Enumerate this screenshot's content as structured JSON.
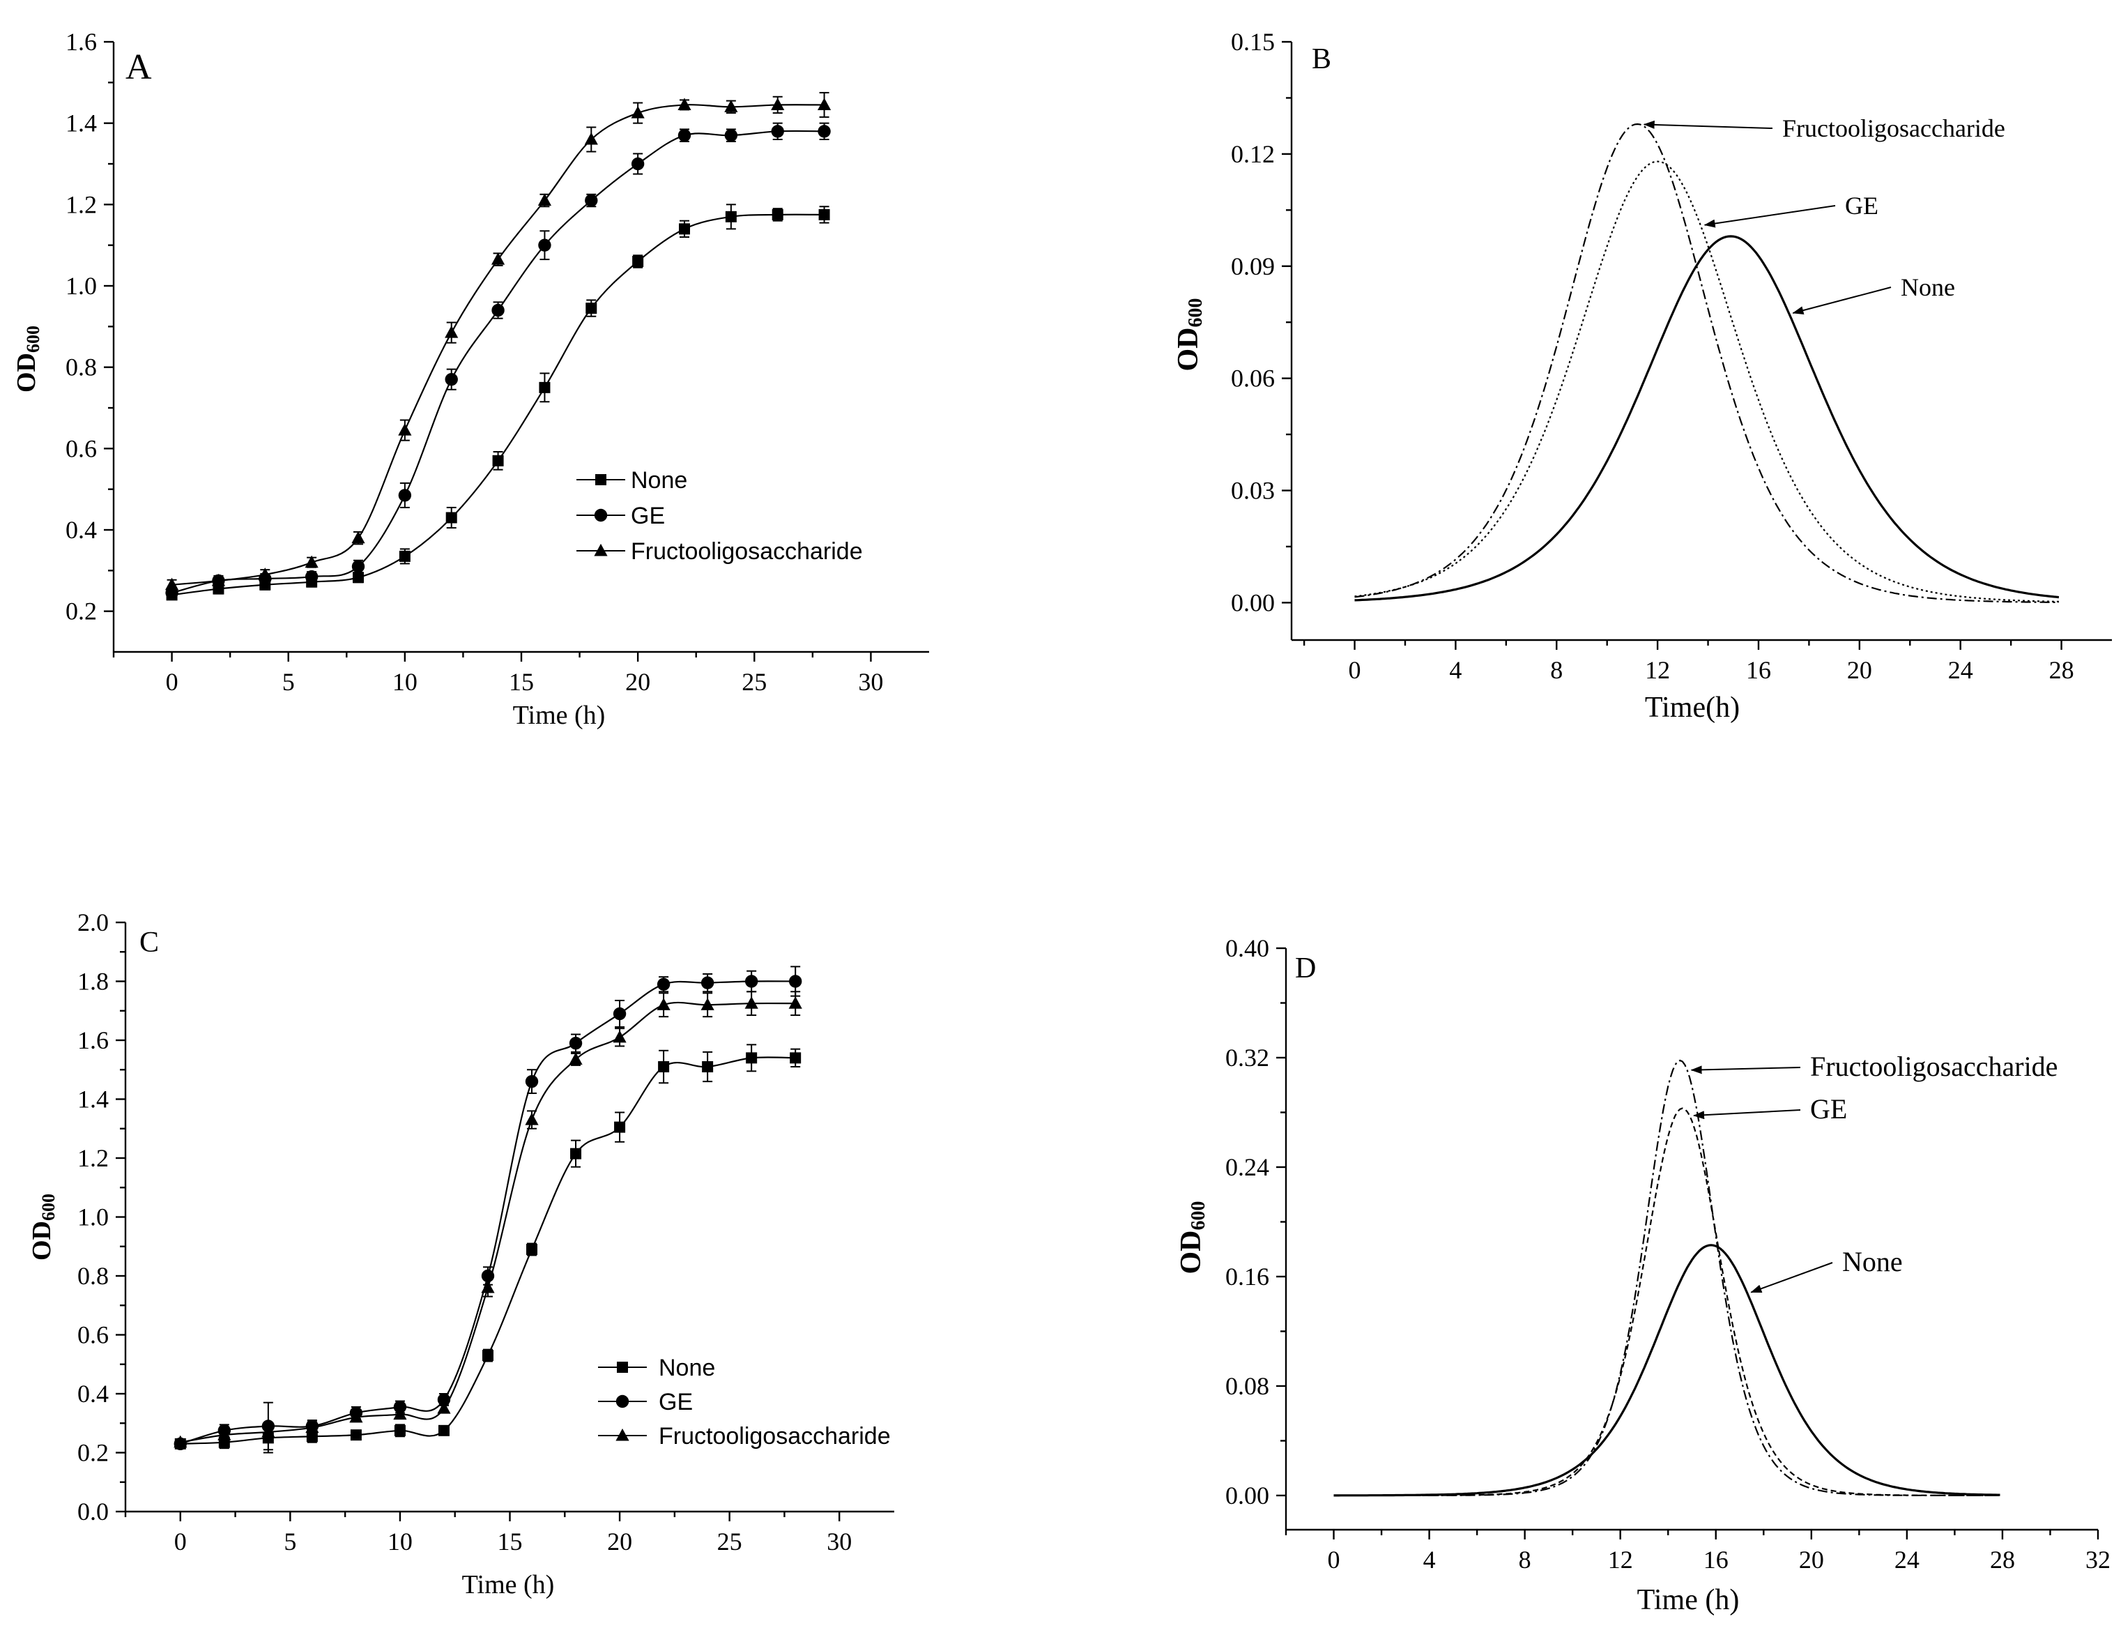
{
  "chart_data": [
    {
      "type": "line",
      "panel": "A",
      "panel_label": "A",
      "xlabel": "Time (h)",
      "ylabel_main": "OD",
      "ylabel_sub": "600",
      "xlim": [
        -2.5,
        32.5
      ],
      "ylim": [
        0.1,
        1.6
      ],
      "xticks": [
        0,
        5,
        10,
        15,
        20,
        25,
        30
      ],
      "xtick_labels": [
        "0",
        "5",
        "10",
        "15",
        "20",
        "25",
        "30"
      ],
      "yticks": [
        0.2,
        0.4,
        0.6,
        0.8,
        1.0,
        1.2,
        1.4,
        1.6
      ],
      "ytick_labels": [
        "0.2",
        "0.4",
        "0.6",
        "0.8",
        "1.0",
        "1.2",
        "1.4",
        "1.6"
      ],
      "legend_position": "center-right",
      "x": [
        0,
        2,
        4,
        6,
        8,
        10,
        12,
        14,
        16,
        18,
        20,
        22,
        24,
        26,
        28
      ],
      "series": [
        {
          "name": "None",
          "marker": "square",
          "values": [
            0.24,
            0.255,
            0.265,
            0.272,
            0.283,
            0.335,
            0.43,
            0.57,
            0.75,
            0.945,
            1.06,
            1.14,
            1.17,
            1.175,
            1.175
          ],
          "errors": [
            0.01,
            0.012,
            0.012,
            0.012,
            0.012,
            0.018,
            0.025,
            0.022,
            0.035,
            0.02,
            0.015,
            0.02,
            0.03,
            0.015,
            0.02
          ]
        },
        {
          "name": "GE",
          "marker": "circle",
          "values": [
            0.245,
            0.275,
            0.28,
            0.285,
            0.31,
            0.485,
            0.77,
            0.94,
            1.1,
            1.21,
            1.3,
            1.37,
            1.37,
            1.38,
            1.38
          ],
          "errors": [
            0.01,
            0.012,
            0.012,
            0.012,
            0.015,
            0.03,
            0.025,
            0.02,
            0.035,
            0.015,
            0.025,
            0.015,
            0.015,
            0.02,
            0.02
          ]
        },
        {
          "name": "Fructooligosaccharide",
          "marker": "triangle",
          "values": [
            0.265,
            0.275,
            0.29,
            0.32,
            0.38,
            0.645,
            0.885,
            1.065,
            1.21,
            1.36,
            1.425,
            1.445,
            1.44,
            1.445,
            1.445
          ],
          "errors": [
            0.012,
            0.012,
            0.012,
            0.012,
            0.015,
            0.025,
            0.025,
            0.015,
            0.015,
            0.03,
            0.025,
            0.012,
            0.015,
            0.02,
            0.03
          ]
        }
      ]
    },
    {
      "type": "line",
      "panel": "B",
      "panel_label": "B",
      "xlabel": "Time(h)",
      "ylabel_main": "OD",
      "ylabel_sub": "600",
      "xlim": [
        -2.5,
        30
      ],
      "ylim": [
        -0.01,
        0.15
      ],
      "xticks": [
        0,
        4,
        8,
        12,
        16,
        20,
        24,
        28
      ],
      "xtick_labels": [
        "0",
        "4",
        "8",
        "12",
        "16",
        "20",
        "24",
        "28"
      ],
      "yticks": [
        0,
        0.03,
        0.06,
        0.09,
        0.12,
        0.15
      ],
      "ytick_labels": [
        "0.00",
        "0.03",
        "0.06",
        "0.09",
        "0.12",
        "0.15"
      ],
      "series": [
        {
          "name": "Fructooligosaccharide",
          "style": "dashdot",
          "peak_time": 11.2,
          "peak_value": 0.128,
          "k": 0.52,
          "at": 11.3
        },
        {
          "name": "GE",
          "style": "dotted",
          "peak_time": 12.0,
          "peak_value": 0.118,
          "k": 0.47,
          "at": 13.7
        },
        {
          "name": "None",
          "style": "solid",
          "peak_time": 14.9,
          "peak_value": 0.098,
          "k": 0.43,
          "at": 17.2
        }
      ],
      "annotations": [
        "Fructooligosaccharide",
        "GE",
        "None"
      ]
    },
    {
      "type": "line",
      "panel": "C",
      "panel_label": "C",
      "xlabel": "Time (h)",
      "ylabel_main": "OD",
      "ylabel_sub": "600",
      "xlim": [
        -2.5,
        32.5
      ],
      "ylim": [
        0,
        2.0
      ],
      "xticks": [
        0,
        5,
        10,
        15,
        20,
        25,
        30
      ],
      "xtick_labels": [
        "0",
        "5",
        "10",
        "15",
        "20",
        "25",
        "30"
      ],
      "yticks": [
        0,
        0.2,
        0.4,
        0.6,
        0.8,
        1.0,
        1.2,
        1.4,
        1.6,
        1.8,
        2.0
      ],
      "ytick_labels": [
        "0.0",
        "0.2",
        "0.4",
        "0.6",
        "0.8",
        "1.0",
        "1.2",
        "1.4",
        "1.6",
        "1.8",
        "2.0"
      ],
      "legend_position": "bottom-center",
      "x": [
        0,
        2,
        4,
        6,
        8,
        10,
        12,
        14,
        16,
        18,
        20,
        22,
        24,
        26,
        28
      ],
      "series": [
        {
          "name": "None",
          "marker": "square",
          "values": [
            0.23,
            0.235,
            0.25,
            0.255,
            0.26,
            0.275,
            0.275,
            0.53,
            0.89,
            1.215,
            1.305,
            1.51,
            1.51,
            1.54,
            1.54
          ],
          "errors": [
            0.01,
            0.02,
            0.05,
            0.02,
            0.015,
            0.02,
            0.015,
            0.02,
            0.02,
            0.045,
            0.05,
            0.055,
            0.05,
            0.045,
            0.03
          ]
        },
        {
          "name": "GE",
          "marker": "circle",
          "values": [
            0.23,
            0.275,
            0.29,
            0.29,
            0.335,
            0.355,
            0.38,
            0.8,
            1.46,
            1.59,
            1.69,
            1.79,
            1.795,
            1.8,
            1.8
          ],
          "errors": [
            0.01,
            0.02,
            0.08,
            0.02,
            0.02,
            0.02,
            0.02,
            0.03,
            0.04,
            0.03,
            0.045,
            0.025,
            0.03,
            0.035,
            0.05
          ]
        },
        {
          "name": "Fructooligosaccharide",
          "marker": "triangle",
          "values": [
            0.235,
            0.26,
            0.27,
            0.285,
            0.32,
            0.33,
            0.35,
            0.76,
            1.33,
            1.535,
            1.61,
            1.72,
            1.72,
            1.725,
            1.725
          ],
          "errors": [
            0.01,
            0.015,
            0.02,
            0.02,
            0.015,
            0.015,
            0.015,
            0.03,
            0.03,
            0.02,
            0.03,
            0.04,
            0.04,
            0.04,
            0.04
          ]
        }
      ]
    },
    {
      "type": "line",
      "panel": "D",
      "panel_label": "D",
      "xlabel": "Time (h)",
      "ylabel_main": "OD",
      "ylabel_sub": "600",
      "xlim": [
        -2,
        32
      ],
      "ylim": [
        -0.025,
        0.4
      ],
      "xticks": [
        0,
        4,
        8,
        12,
        16,
        20,
        24,
        28,
        32
      ],
      "xtick_labels": [
        "0",
        "4",
        "8",
        "12",
        "16",
        "20",
        "24",
        "28",
        "32"
      ],
      "yticks": [
        0,
        0.08,
        0.16,
        0.24,
        0.32,
        0.4
      ],
      "ytick_labels": [
        "0.00",
        "0.08",
        "0.16",
        "0.24",
        "0.32",
        "0.40"
      ],
      "series": [
        {
          "name": "Fructooligosaccharide",
          "style": "dashdot",
          "peak_time": 14.5,
          "peak_value": 0.318,
          "k": 1.0,
          "at": 14.8
        },
        {
          "name": "GE",
          "style": "dashed",
          "peak_time": 14.6,
          "peak_value": 0.283,
          "k": 0.92,
          "at": 14.9
        },
        {
          "name": "None",
          "style": "solid",
          "peak_time": 15.8,
          "peak_value": 0.183,
          "k": 0.62,
          "at": 17.3
        }
      ],
      "annotations": [
        "Fructooligosaccharide",
        "GE",
        "None"
      ]
    }
  ]
}
